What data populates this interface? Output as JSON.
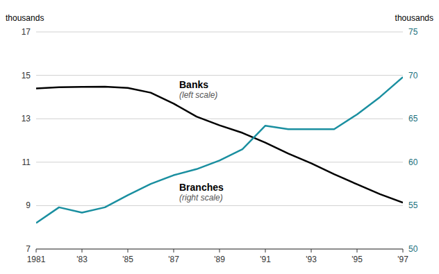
{
  "chart_data": {
    "type": "line",
    "x": [
      1981,
      1982,
      1983,
      1984,
      1985,
      1986,
      1987,
      1988,
      1989,
      1990,
      1991,
      1992,
      1993,
      1994,
      1995,
      1996,
      1997
    ],
    "series": [
      {
        "name": "Banks",
        "color": "#000000",
        "axis": "y",
        "values": [
          14.4,
          14.45,
          14.47,
          14.48,
          14.42,
          14.2,
          13.7,
          13.1,
          12.7,
          12.35,
          11.9,
          11.4,
          10.95,
          10.45,
          9.98,
          9.53,
          9.14
        ]
      },
      {
        "name": "Branches",
        "color": "#1a8fa0",
        "axis": "y2",
        "values": [
          53.0,
          54.8,
          54.2,
          54.8,
          56.2,
          57.5,
          58.5,
          59.2,
          60.2,
          61.5,
          64.2,
          63.8,
          63.8,
          63.8,
          65.5,
          67.5,
          69.8
        ]
      }
    ],
    "annotations": [
      "(left scale)",
      "(right scale)"
    ],
    "ylabel": "thousands",
    "y2label": "thousands",
    "xlim": [
      1981,
      1997
    ],
    "xticks": [
      1981,
      {
        "value": 1983,
        "label": "'83"
      },
      {
        "value": 1985,
        "label": "'85"
      },
      {
        "value": 1987,
        "label": "'87"
      },
      {
        "value": 1989,
        "label": "'89"
      },
      {
        "value": 1991,
        "label": "'91"
      },
      {
        "value": 1993,
        "label": "'93"
      },
      {
        "value": 1995,
        "label": "'95"
      },
      {
        "value": 1997,
        "label": "'97"
      }
    ],
    "ylim": [
      7,
      17
    ],
    "yticks": [
      7,
      9,
      11,
      13,
      15,
      17
    ],
    "y2lim": [
      50,
      75
    ],
    "y2ticks": [
      50,
      55,
      60,
      65,
      70,
      75
    ],
    "grid": true
  }
}
